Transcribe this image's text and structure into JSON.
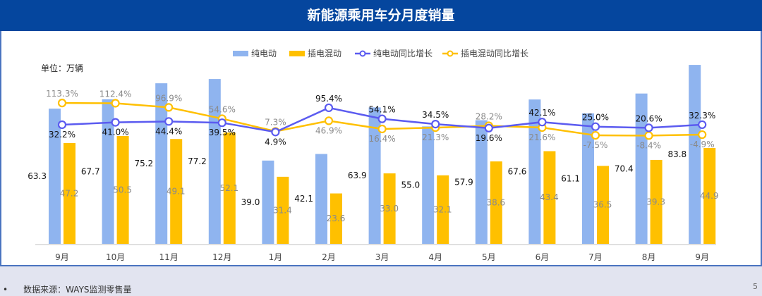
{
  "header": {
    "title": "新能源乘用车分月度销量"
  },
  "footer": {
    "bullet": "•",
    "source": "数据来源：WAYS监测零售量",
    "page": "5"
  },
  "chart_data": {
    "type": "bar+line",
    "unit_label": "单位：万辆",
    "categories": [
      "9月",
      "10月",
      "11月",
      "12月",
      "1月",
      "2月",
      "3月",
      "4月",
      "5月",
      "6月",
      "7月",
      "8月",
      "9月"
    ],
    "series": [
      {
        "name": "纯电动",
        "type": "bar",
        "color": "#8fb4ef",
        "values": [
          63.3,
          67.7,
          75.2,
          77.2,
          39.0,
          42.1,
          63.9,
          55.0,
          57.9,
          67.6,
          61.1,
          70.4,
          83.8
        ]
      },
      {
        "name": "插电混动",
        "type": "bar",
        "color": "#ffc000",
        "values": [
          47.2,
          50.5,
          49.1,
          52.1,
          31.4,
          23.6,
          33.0,
          32.1,
          38.6,
          43.4,
          36.5,
          39.3,
          44.9
        ]
      },
      {
        "name": "纯电动同比增长",
        "type": "line",
        "axis": "secondary",
        "color": "#5b5bf0",
        "values": [
          32.2,
          41.0,
          44.4,
          39.5,
          4.9,
          95.4,
          54.1,
          34.5,
          19.6,
          42.1,
          25.0,
          20.6,
          32.3
        ],
        "labels": [
          "32.2%",
          "41.0%",
          "44.4%",
          "39.5%",
          "4.9%",
          "95.4%",
          "54.1%",
          "34.5%",
          "19.6%",
          "42.1%",
          "25.0%",
          "20.6%",
          "32.3%"
        ]
      },
      {
        "name": "插电混动同比增长",
        "type": "line",
        "axis": "secondary",
        "color": "#ffc000",
        "values": [
          113.3,
          112.4,
          96.9,
          54.6,
          7.3,
          46.9,
          16.4,
          21.3,
          28.2,
          21.6,
          -7.5,
          -8.4,
          -4.9
        ],
        "labels": [
          "113.3%",
          "112.4%",
          "96.9%",
          "54.6%",
          "7.3%",
          "46.9%",
          "16.4%",
          "21.3%",
          "28.2%",
          "21.6%",
          "-7.5%",
          "-8.4%",
          "-4.9%"
        ]
      }
    ],
    "legend": "top-center",
    "grid": false
  }
}
